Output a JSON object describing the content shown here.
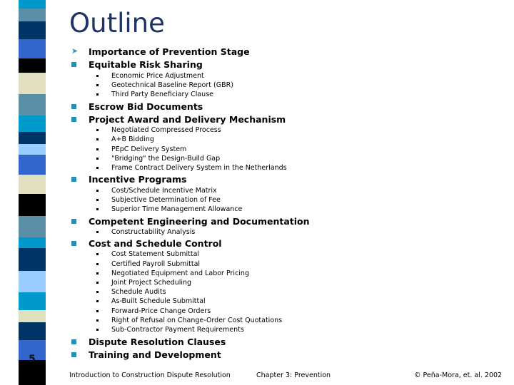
{
  "slide": {
    "title": "Outline",
    "number": "5",
    "band_colors": [
      "#0099cc",
      "#5b8fa8",
      "#003366",
      "#3366cc",
      "#000000",
      "#e0e0c0",
      "#5b8fa8",
      "#0099cc",
      "#003366",
      "#99ccff",
      "#3366cc",
      "#e0e0c0",
      "#000000",
      "#5b8fa8",
      "#0099cc",
      "#003366",
      "#99ccff",
      "#0099cc",
      "#e0e0c0",
      "#003366",
      "#3366cc",
      "#000000"
    ],
    "items": [
      {
        "label": "Importance of Prevention Stage",
        "bullet": "arrow-icon",
        "subitems": []
      },
      {
        "label": "Equitable Risk Sharing",
        "bullet": "square-icon",
        "subitems": [
          "Economic Price Adjustment",
          "Geotechnical Baseline Report (GBR)",
          "Third Party Beneficiary Clause"
        ]
      },
      {
        "label": "Escrow Bid Documents",
        "bullet": "square-icon",
        "subitems": []
      },
      {
        "label": "Project Award and Delivery Mechanism",
        "bullet": "square-icon",
        "subitems": [
          "Negotiated Compressed Process",
          "A+B Bidding",
          "PEpC Delivery System",
          "\"Bridging\" the Design-Build Gap",
          "Frame Contract Delivery System in the Netherlands"
        ]
      },
      {
        "label": "Incentive Programs",
        "bullet": "square-icon",
        "subitems": [
          "Cost/Schedule Incentive Matrix",
          "Subjective Determination of Fee",
          "Superior Time Management Allowance"
        ]
      },
      {
        "label": "Competent Engineering and Documentation",
        "bullet": "square-icon",
        "subitems": [
          "Constructability Analysis"
        ]
      },
      {
        "label": "Cost and Schedule Control",
        "bullet": "square-icon",
        "subitems": [
          "Cost Statement Submittal",
          "Certified Payroll Submittal",
          "Negotiated Equipment and Labor Pricing",
          "Joint Project Scheduling",
          "Schedule Audits",
          "As-Built Schedule Submittal",
          "Forward-Price Change Orders",
          "Right of Refusal on Change-Order Cost Quotations",
          "Sub-Contractor Payment Requirements"
        ]
      },
      {
        "label": "Dispute Resolution Clauses",
        "bullet": "square-icon",
        "subitems": []
      },
      {
        "label": "Training and Development",
        "bullet": "square-icon",
        "subitems": []
      }
    ]
  },
  "footer": {
    "left": "Introduction to Construction Dispute Resolution",
    "center": "Chapter 3: Prevention",
    "right": "© Peña-Mora, et. al. 2002"
  }
}
